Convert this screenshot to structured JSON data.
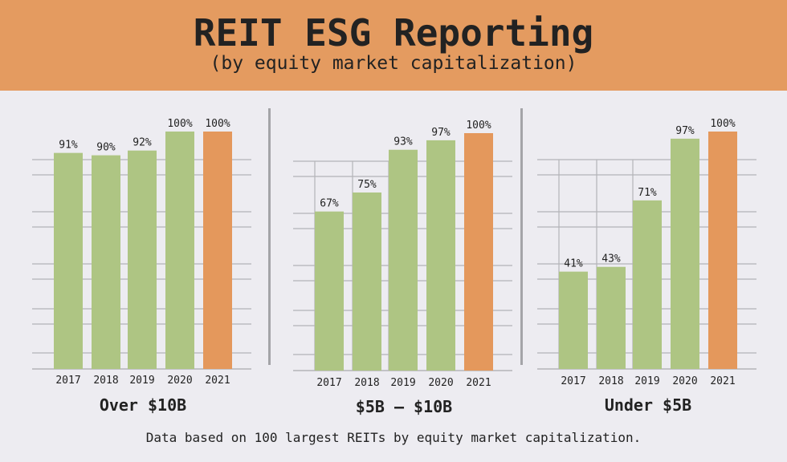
{
  "header": {
    "title": "REIT ESG Reporting",
    "subtitle": "(by equity market capitalization)"
  },
  "footnote": "Data based on 100 largest REITs by equity market capitalization.",
  "colors": {
    "header_bg": "#e49b60",
    "bar_green": "#aec583",
    "bar_orange": "#e4985c",
    "grid": "#b3b3b8",
    "background": "#edecf1"
  },
  "chart_data": [
    {
      "type": "bar",
      "title": "Over $10B",
      "categories": [
        "2017",
        "2018",
        "2019",
        "2020",
        "2021"
      ],
      "values": [
        91,
        90,
        92,
        100,
        100
      ],
      "data_labels": [
        "91%",
        "90%",
        "92%",
        "100%",
        "100%"
      ],
      "highlight_index": 4,
      "ylim": [
        0,
        100
      ],
      "unit": "%"
    },
    {
      "type": "bar",
      "title": "$5B – $10B",
      "categories": [
        "2017",
        "2018",
        "2019",
        "2020",
        "2021"
      ],
      "values": [
        67,
        75,
        93,
        97,
        100
      ],
      "data_labels": [
        "67%",
        "75%",
        "93%",
        "97%",
        "100%"
      ],
      "highlight_index": 4,
      "ylim": [
        0,
        100
      ],
      "unit": "%"
    },
    {
      "type": "bar",
      "title": "Under $5B",
      "categories": [
        "2017",
        "2018",
        "2019",
        "2020",
        "2021"
      ],
      "values": [
        41,
        43,
        71,
        97,
        100
      ],
      "data_labels": [
        "41%",
        "43%",
        "71%",
        "97%",
        "100%"
      ],
      "highlight_index": 4,
      "ylim": [
        0,
        100
      ],
      "unit": "%"
    }
  ]
}
